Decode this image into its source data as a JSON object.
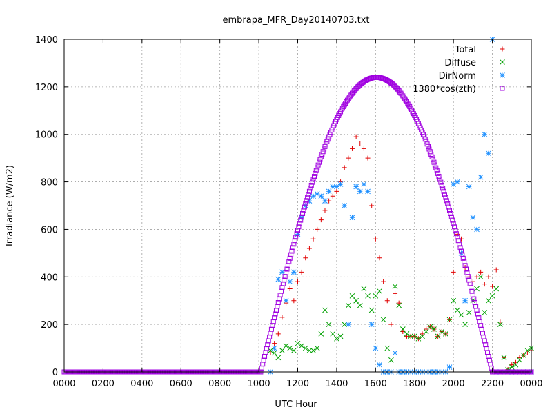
{
  "chart_data": {
    "type": "scatter",
    "title": "embrapa_MFR_Day20140703.txt",
    "xlabel": "UTC Hour",
    "ylabel": "Irradiance (W/m2)",
    "xlim": [
      0,
      24
    ],
    "ylim": [
      0,
      1400
    ],
    "x_ticks": [
      {
        "v": 0,
        "label": "0000"
      },
      {
        "v": 2,
        "label": "0200"
      },
      {
        "v": 4,
        "label": "0400"
      },
      {
        "v": 6,
        "label": "0600"
      },
      {
        "v": 8,
        "label": "0800"
      },
      {
        "v": 10,
        "label": "1000"
      },
      {
        "v": 12,
        "label": "1200"
      },
      {
        "v": 14,
        "label": "1400"
      },
      {
        "v": 16,
        "label": "1600"
      },
      {
        "v": 18,
        "label": "1800"
      },
      {
        "v": 20,
        "label": "2000"
      },
      {
        "v": 22,
        "label": "2200"
      },
      {
        "v": 24,
        "label": "0000"
      }
    ],
    "y_ticks": [
      0,
      200,
      400,
      600,
      800,
      1000,
      1200,
      1400
    ],
    "grid": true,
    "legend_position": "top-right",
    "series": [
      {
        "name": "Total",
        "marker": "plus",
        "color": "#e00000",
        "x": [
          10.6,
          10.8,
          11.0,
          11.2,
          11.4,
          11.6,
          11.8,
          12.0,
          12.2,
          12.4,
          12.6,
          12.8,
          13.0,
          13.2,
          13.4,
          13.6,
          13.8,
          14.0,
          14.2,
          14.4,
          14.6,
          14.8,
          15.0,
          15.2,
          15.4,
          15.6,
          15.8,
          16.0,
          16.2,
          16.4,
          16.6,
          16.8,
          17.0,
          17.2,
          17.4,
          17.6,
          17.8,
          18.0,
          18.2,
          18.4,
          18.6,
          18.8,
          19.0,
          19.2,
          19.4,
          19.6,
          19.8,
          20.0,
          20.2,
          20.4,
          20.6,
          20.8,
          21.0,
          21.2,
          21.4,
          21.6,
          21.8,
          22.0,
          22.2,
          22.4,
          22.6,
          22.8,
          23.0,
          23.2,
          23.4,
          23.6,
          23.8,
          24.0
        ],
        "y": [
          80,
          120,
          160,
          230,
          290,
          350,
          300,
          380,
          420,
          480,
          520,
          560,
          600,
          640,
          680,
          720,
          740,
          760,
          800,
          860,
          900,
          940,
          990,
          960,
          940,
          900,
          700,
          560,
          480,
          380,
          300,
          200,
          330,
          290,
          170,
          150,
          150,
          150,
          140,
          160,
          180,
          190,
          180,
          150,
          170,
          160,
          220,
          420,
          580,
          560,
          440,
          400,
          380,
          400,
          420,
          370,
          400,
          360,
          430,
          210,
          60,
          10,
          30,
          40,
          60,
          70,
          80,
          90
        ]
      },
      {
        "name": "Diffuse",
        "marker": "cross",
        "color": "#00a000",
        "x": [
          10.6,
          10.8,
          11.0,
          11.2,
          11.4,
          11.6,
          11.8,
          12.0,
          12.2,
          12.4,
          12.6,
          12.8,
          13.0,
          13.2,
          13.4,
          13.6,
          13.8,
          14.0,
          14.2,
          14.4,
          14.6,
          14.8,
          15.0,
          15.2,
          15.4,
          15.6,
          15.8,
          16.0,
          16.2,
          16.4,
          16.6,
          16.8,
          17.0,
          17.2,
          17.4,
          17.6,
          17.8,
          18.0,
          18.2,
          18.4,
          18.6,
          18.8,
          19.0,
          19.2,
          19.4,
          19.6,
          19.8,
          20.0,
          20.2,
          20.4,
          20.6,
          20.8,
          21.0,
          21.2,
          21.4,
          21.6,
          21.8,
          22.0,
          22.2,
          22.4,
          22.6,
          22.8,
          23.0,
          23.2,
          23.4,
          23.6,
          23.8,
          24.0
        ],
        "y": [
          90,
          80,
          60,
          90,
          110,
          100,
          90,
          120,
          110,
          100,
          90,
          90,
          100,
          160,
          260,
          200,
          160,
          140,
          150,
          200,
          280,
          320,
          300,
          280,
          350,
          320,
          260,
          320,
          340,
          220,
          100,
          50,
          360,
          280,
          180,
          160,
          150,
          150,
          140,
          150,
          170,
          190,
          180,
          150,
          170,
          160,
          220,
          300,
          260,
          240,
          200,
          250,
          300,
          350,
          400,
          250,
          300,
          320,
          350,
          200,
          60,
          10,
          20,
          30,
          50,
          70,
          90,
          100
        ]
      },
      {
        "name": "DirNorm",
        "marker": "star",
        "color": "#1e90ff",
        "x": [
          10.6,
          10.8,
          11.0,
          11.2,
          11.4,
          11.6,
          11.8,
          12.0,
          12.2,
          12.4,
          12.6,
          12.8,
          13.0,
          13.2,
          13.4,
          13.6,
          13.8,
          14.0,
          14.2,
          14.4,
          14.6,
          14.8,
          15.0,
          15.2,
          15.4,
          15.6,
          15.8,
          16.0,
          16.2,
          16.4,
          16.6,
          16.8,
          17.0,
          17.2,
          17.4,
          17.6,
          17.8,
          18.0,
          18.2,
          18.4,
          18.6,
          18.8,
          19.0,
          19.2,
          19.4,
          19.6,
          19.8,
          20.0,
          20.2,
          20.4,
          20.6,
          20.8,
          21.0,
          21.2,
          21.4,
          21.6,
          21.8,
          22.0,
          22.2,
          22.4,
          22.6,
          22.8,
          23.0,
          23.2,
          23.4,
          23.6,
          23.8,
          24.0
        ],
        "y": [
          0,
          100,
          390,
          420,
          300,
          380,
          420,
          580,
          650,
          700,
          720,
          740,
          750,
          740,
          720,
          760,
          780,
          780,
          790,
          700,
          200,
          650,
          780,
          760,
          790,
          760,
          200,
          100,
          30,
          0,
          0,
          0,
          80,
          0,
          0,
          0,
          0,
          0,
          0,
          0,
          0,
          0,
          0,
          0,
          0,
          0,
          20,
          790,
          800,
          500,
          300,
          780,
          650,
          600,
          820,
          1000,
          920,
          1400,
          0,
          0,
          0,
          0,
          0,
          0,
          0,
          0,
          0,
          0
        ]
      },
      {
        "name": "1380*cos(zth)",
        "marker": "square",
        "color": "#a000e0",
        "x_range": [
          0,
          24
        ],
        "sunrise": 10.1,
        "sunset": 22.0,
        "peak_x": 16.1,
        "peak_y": 1240
      }
    ]
  }
}
